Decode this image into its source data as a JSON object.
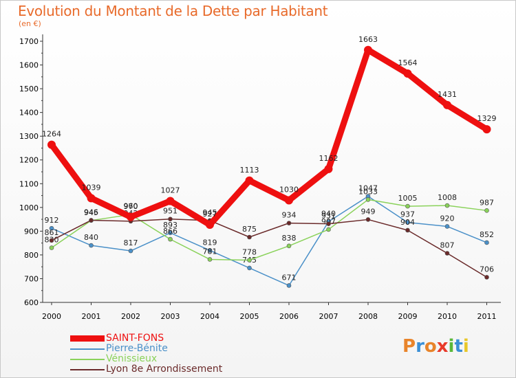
{
  "title": "Evolution du Montant de la Dette par Habitant",
  "subtitle": "(en €)",
  "brand": {
    "text": "Proxiti",
    "letters": [
      {
        "ch": "P",
        "color": "#e8842a"
      },
      {
        "ch": "r",
        "color": "#3a8fd6"
      },
      {
        "ch": "o",
        "color": "#e8842a"
      },
      {
        "ch": "x",
        "color": "#e83a2a"
      },
      {
        "ch": "i",
        "color": "#5ab83a"
      },
      {
        "ch": "t",
        "color": "#3a8fd6"
      },
      {
        "ch": "i",
        "color": "#e8c82a"
      }
    ]
  },
  "chart_data": {
    "type": "line",
    "title": "Evolution du Montant de la Dette par Habitant",
    "subtitle": "(en €)",
    "x": [
      "2000",
      "2001",
      "2002",
      "2003",
      "2004",
      "2005",
      "2006",
      "2007",
      "2008",
      "2009",
      "2010",
      "2011"
    ],
    "yticks": [
      600,
      700,
      800,
      900,
      1000,
      1100,
      1200,
      1300,
      1400,
      1500,
      1600,
      1700
    ],
    "ylim": [
      600,
      1700
    ],
    "grid": false,
    "legend_position": "bottom-left",
    "series": [
      {
        "name": "Pierre-Bénite",
        "color": "#4a90c8",
        "stroke_width": 1.5,
        "marker": "circle",
        "values": [
          912,
          840,
          817,
          893,
          819,
          745,
          671,
          940,
          1047,
          937,
          920,
          852
        ]
      },
      {
        "name": "Vénissieux",
        "color": "#8ad25a",
        "stroke_width": 1.5,
        "marker": "circle",
        "values": [
          830,
          945,
          970,
          866,
          781,
          778,
          838,
          907,
          1033,
          1005,
          1008,
          987
        ]
      },
      {
        "name": "Lyon 8e  Arrondissement",
        "color": "#6a2a2a",
        "stroke_width": 1.5,
        "marker": "circle",
        "values": [
          861,
          946,
          942,
          951,
          945,
          875,
          934,
          931,
          949,
          904,
          807,
          706
        ]
      },
      {
        "name": "SAINT-FONS",
        "color": "#ee1010",
        "stroke_width": 9,
        "marker": "circle",
        "values": [
          1264,
          1039,
          960,
          1027,
          927,
          1113,
          1030,
          1162,
          1663,
          1564,
          1431,
          1329
        ]
      }
    ],
    "legend_order": [
      "SAINT-FONS",
      "Pierre-Bénite",
      "Vénissieux",
      "Lyon 8e  Arrondissement"
    ]
  }
}
